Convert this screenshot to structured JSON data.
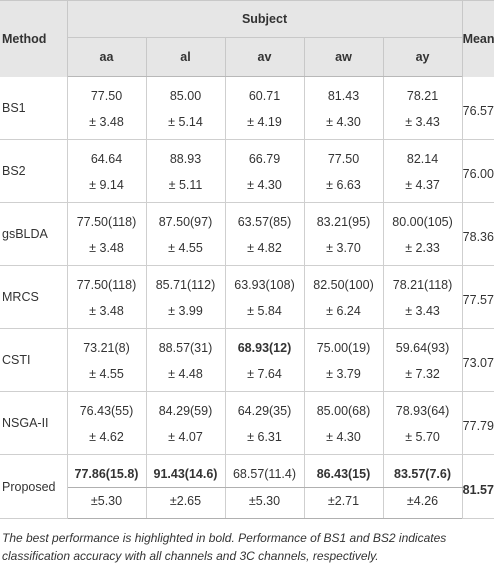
{
  "header": {
    "method": "Method",
    "subject": "Subject",
    "mean": "Mean",
    "subjects": [
      "aa",
      "al",
      "av",
      "aw",
      "ay"
    ]
  },
  "rows": [
    {
      "method": "BS1",
      "values": [
        {
          "top": "77.50",
          "bottom": "± 3.48",
          "bold": false
        },
        {
          "top": "85.00",
          "bottom": "± 5.14",
          "bold": false
        },
        {
          "top": "60.71",
          "bottom": "± 4.19",
          "bold": false
        },
        {
          "top": "81.43",
          "bottom": "± 4.30",
          "bold": false
        },
        {
          "top": "78.21",
          "bottom": "± 3.43",
          "bold": false
        }
      ],
      "mean": "76.57",
      "mean_bold": false
    },
    {
      "method": "BS2",
      "values": [
        {
          "top": "64.64",
          "bottom": "± 9.14",
          "bold": false
        },
        {
          "top": "88.93",
          "bottom": "± 5.11",
          "bold": false
        },
        {
          "top": "66.79",
          "bottom": "± 4.30",
          "bold": false
        },
        {
          "top": "77.50",
          "bottom": "± 6.63",
          "bold": false
        },
        {
          "top": "82.14",
          "bottom": "± 4.37",
          "bold": false
        }
      ],
      "mean": "76.00",
      "mean_bold": false
    },
    {
      "method": "gsBLDA",
      "values": [
        {
          "top": "77.50(118)",
          "bottom": "± 3.48",
          "bold": false
        },
        {
          "top": "87.50(97)",
          "bottom": "± 4.55",
          "bold": false
        },
        {
          "top": "63.57(85)",
          "bottom": "± 4.82",
          "bold": false
        },
        {
          "top": "83.21(95)",
          "bottom": "± 3.70",
          "bold": false
        },
        {
          "top": "80.00(105)",
          "bottom": "± 2.33",
          "bold": false
        }
      ],
      "mean": "78.36",
      "mean_bold": false
    },
    {
      "method": "MRCS",
      "values": [
        {
          "top": "77.50(118)",
          "bottom": "± 3.48",
          "bold": false
        },
        {
          "top": "85.71(112)",
          "bottom": "± 3.99",
          "bold": false
        },
        {
          "top": "63.93(108)",
          "bottom": "± 5.84",
          "bold": false
        },
        {
          "top": "82.50(100)",
          "bottom": "± 6.24",
          "bold": false
        },
        {
          "top": "78.21(118)",
          "bottom": "± 3.43",
          "bold": false
        }
      ],
      "mean": "77.57",
      "mean_bold": false
    },
    {
      "method": "CSTI",
      "values": [
        {
          "top": "73.21(8)",
          "bottom": "± 4.55",
          "bold": false
        },
        {
          "top": "88.57(31)",
          "bottom": "± 4.48",
          "bold": false
        },
        {
          "top": "68.93(12)",
          "bottom": "± 7.64",
          "bold": true
        },
        {
          "top": "75.00(19)",
          "bottom": "± 3.79",
          "bold": false
        },
        {
          "top": "59.64(93)",
          "bottom": "± 7.32",
          "bold": false
        }
      ],
      "mean": "73.07",
      "mean_bold": false
    },
    {
      "method": "NSGA-II",
      "values": [
        {
          "top": "76.43(55)",
          "bottom": "± 4.62",
          "bold": false
        },
        {
          "top": "84.29(59)",
          "bottom": "± 4.07",
          "bold": false
        },
        {
          "top": "64.29(35)",
          "bottom": "± 6.31",
          "bold": false
        },
        {
          "top": "85.00(68)",
          "bottom": "± 4.30",
          "bold": false
        },
        {
          "top": "78.93(64)",
          "bottom": "± 5.70",
          "bold": false
        }
      ],
      "mean": "77.79",
      "mean_bold": false
    },
    {
      "method": "Proposed",
      "values": [
        {
          "top": "77.86(15.8)",
          "bottom": "±5.30",
          "bold": true
        },
        {
          "top": "91.43(14.6)",
          "bottom": "±2.65",
          "bold": true
        },
        {
          "top": "68.57(11.4)",
          "bottom": "±5.30",
          "bold": false
        },
        {
          "top": "86.43(15)",
          "bottom": "±2.71",
          "bold": true
        },
        {
          "top": "83.57(7.6)",
          "bottom": "±4.26",
          "bold": true
        }
      ],
      "mean": "81.57",
      "mean_bold": true
    }
  ],
  "footnote": "The best performance is highlighted in bold. Performance of BS1 and BS2 indicates classification accuracy with all channels and 3C channels, respectively."
}
